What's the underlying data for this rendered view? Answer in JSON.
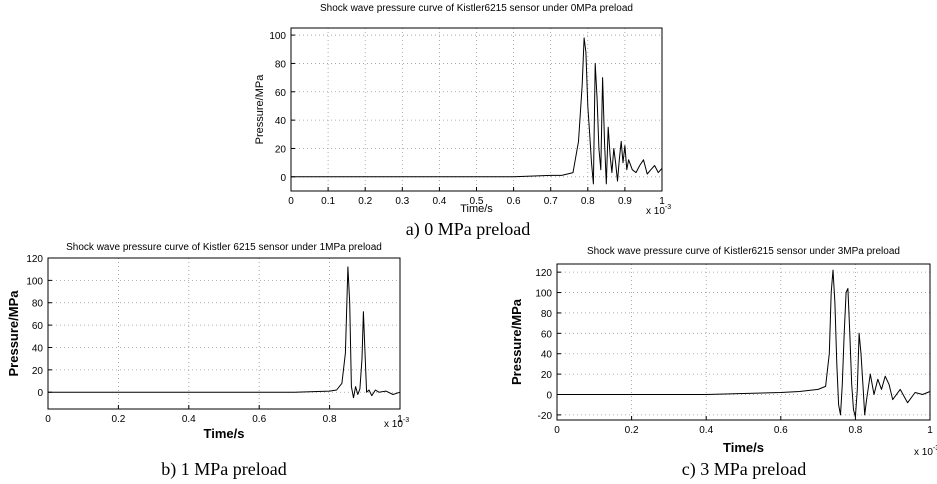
{
  "chart_data": [
    {
      "type": "line",
      "title": "Shock wave pressure curve of Kistler6215 sensor under 0MPa preload",
      "xlabel": "Time/s",
      "ylabel": "Pressure/MPa",
      "x_multiplier": "x 10",
      "x_multiplier_exp": "-3",
      "caption": "a) 0 MPa preload",
      "xlim": [
        0,
        1
      ],
      "ylim": [
        -10,
        105
      ],
      "xticks": [
        0,
        0.1,
        0.2,
        0.3,
        0.4,
        0.5,
        0.6,
        0.7,
        0.8,
        0.9,
        1
      ],
      "yticks": [
        0,
        20,
        40,
        60,
        80,
        100
      ],
      "grid": true,
      "series": [
        {
          "x": [
            0,
            0.1,
            0.2,
            0.3,
            0.4,
            0.5,
            0.6,
            0.7,
            0.73,
            0.76,
            0.775,
            0.785,
            0.79,
            0.795,
            0.8,
            0.805,
            0.81,
            0.815,
            0.82,
            0.825,
            0.83,
            0.835,
            0.84,
            0.845,
            0.85,
            0.855,
            0.86,
            0.865,
            0.87,
            0.875,
            0.88,
            0.885,
            0.89,
            0.895,
            0.9,
            0.905,
            0.91,
            0.92,
            0.93,
            0.94,
            0.95,
            0.96,
            0.97,
            0.98,
            0.99,
            1.0
          ],
          "y": [
            0,
            0,
            0,
            0,
            0,
            0,
            0,
            1,
            1,
            3,
            25,
            65,
            98,
            88,
            50,
            30,
            10,
            -5,
            80,
            55,
            20,
            5,
            70,
            25,
            -5,
            35,
            15,
            3,
            20,
            10,
            -3,
            12,
            25,
            10,
            22,
            5,
            12,
            5,
            3,
            8,
            12,
            2,
            5,
            8,
            3,
            6
          ]
        }
      ]
    },
    {
      "type": "line",
      "title": "Shock wave pressure curve of Kistler 6215 sensor under 1MPa preload",
      "xlabel": "Time/s",
      "ylabel": "Pressure/MPa",
      "x_multiplier": "x 10",
      "x_multiplier_exp": "-3",
      "caption": "b) 1 MPa preload",
      "xlim": [
        0,
        1
      ],
      "ylim": [
        -15,
        120
      ],
      "xticks": [
        0,
        0.2,
        0.4,
        0.6,
        0.8,
        1
      ],
      "yticks": [
        0,
        20,
        40,
        60,
        80,
        100,
        120
      ],
      "grid": true,
      "series": [
        {
          "x": [
            0,
            0.2,
            0.4,
            0.6,
            0.7,
            0.8,
            0.82,
            0.835,
            0.845,
            0.852,
            0.857,
            0.862,
            0.868,
            0.874,
            0.88,
            0.886,
            0.892,
            0.896,
            0.9,
            0.905,
            0.912,
            0.92,
            0.93,
            0.94,
            0.96,
            0.98,
            1.0
          ],
          "y": [
            0,
            0,
            0,
            0,
            0,
            1,
            2,
            8,
            35,
            112,
            80,
            5,
            -5,
            5,
            -2,
            3,
            30,
            72,
            40,
            0,
            2,
            -3,
            2,
            0,
            1,
            -2,
            0
          ]
        }
      ]
    },
    {
      "type": "line",
      "title": "Shock wave pressure curve of Kistler6215 sensor under 3MPa preload",
      "xlabel": "Time/s",
      "ylabel": "Pressure/MPa",
      "x_multiplier": "x 10",
      "x_multiplier_exp": "-3",
      "caption": "c) 3 MPa preload",
      "xlim": [
        0,
        1
      ],
      "ylim": [
        -25,
        128
      ],
      "xticks": [
        0,
        0.2,
        0.4,
        0.6,
        0.8,
        1
      ],
      "yticks": [
        -20,
        0,
        20,
        40,
        60,
        80,
        100,
        120
      ],
      "grid": true,
      "series": [
        {
          "x": [
            0,
            0.2,
            0.4,
            0.5,
            0.6,
            0.65,
            0.7,
            0.72,
            0.73,
            0.735,
            0.74,
            0.745,
            0.75,
            0.755,
            0.76,
            0.765,
            0.77,
            0.775,
            0.78,
            0.785,
            0.79,
            0.795,
            0.8,
            0.805,
            0.81,
            0.815,
            0.82,
            0.825,
            0.83,
            0.84,
            0.85,
            0.86,
            0.87,
            0.88,
            0.89,
            0.9,
            0.92,
            0.94,
            0.96,
            0.98,
            1.0
          ],
          "y": [
            0,
            0,
            0,
            1,
            2,
            3,
            5,
            8,
            40,
            100,
            122,
            90,
            30,
            -10,
            -20,
            10,
            60,
            100,
            104,
            60,
            10,
            -15,
            -22,
            5,
            60,
            40,
            10,
            -20,
            -5,
            20,
            0,
            15,
            5,
            18,
            10,
            -5,
            5,
            -8,
            2,
            0,
            3
          ]
        }
      ]
    }
  ]
}
